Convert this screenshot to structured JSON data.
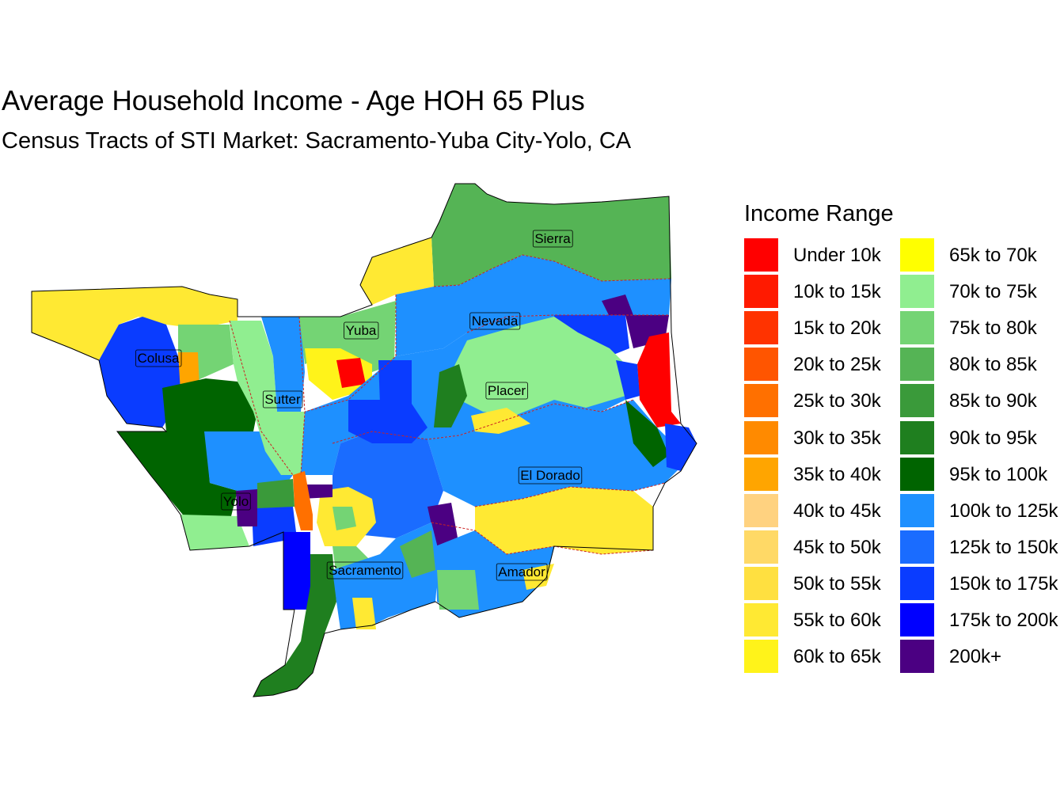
{
  "title": "Average Household Income - Age HOH 65 Plus",
  "subtitle": "Census Tracts of STI Market: Sacramento-Yuba City-Yolo, CA",
  "legend": {
    "title": "Income Range",
    "items": [
      {
        "label": "Under 10k",
        "color": "#ff0000"
      },
      {
        "label": "10k to 15k",
        "color": "#ff1a00"
      },
      {
        "label": "15k to 20k",
        "color": "#ff3300"
      },
      {
        "label": "20k to 25k",
        "color": "#ff5500"
      },
      {
        "label": "25k to 30k",
        "color": "#ff7000"
      },
      {
        "label": "30k to 35k",
        "color": "#ff8a00"
      },
      {
        "label": "35k to 40k",
        "color": "#ffa500"
      },
      {
        "label": "40k to 45k",
        "color": "#ffd280"
      },
      {
        "label": "45k to 50k",
        "color": "#ffd966"
      },
      {
        "label": "50k to 55k",
        "color": "#ffe040"
      },
      {
        "label": "55k to 60k",
        "color": "#ffe933"
      },
      {
        "label": "60k to 65k",
        "color": "#fff31a"
      },
      {
        "label": "65k to 70k",
        "color": "#ffff00"
      },
      {
        "label": "70k to 75k",
        "color": "#90ee90"
      },
      {
        "label": "75k to 80k",
        "color": "#74d474"
      },
      {
        "label": "80k to 85k",
        "color": "#55b455"
      },
      {
        "label": "85k to 90k",
        "color": "#3a9a3a"
      },
      {
        "label": "90k to 95k",
        "color": "#1f7f1f"
      },
      {
        "label": "95k to 100k",
        "color": "#006400"
      },
      {
        "label": "100k to 125k",
        "color": "#1e90ff"
      },
      {
        "label": "125k to 150k",
        "color": "#1a6cff"
      },
      {
        "label": "150k to 175k",
        "color": "#0a3cff"
      },
      {
        "label": "175k to 200k",
        "color": "#0000ff"
      },
      {
        "label": "200k+",
        "color": "#4b0082"
      }
    ]
  },
  "counties": [
    {
      "name": "Sierra"
    },
    {
      "name": "Nevada"
    },
    {
      "name": "Yuba"
    },
    {
      "name": "Colusa"
    },
    {
      "name": "Placer"
    },
    {
      "name": "Sutter"
    },
    {
      "name": "El Dorado"
    },
    {
      "name": "Yolo"
    },
    {
      "name": "Sacramento"
    },
    {
      "name": "Amador"
    }
  ]
}
